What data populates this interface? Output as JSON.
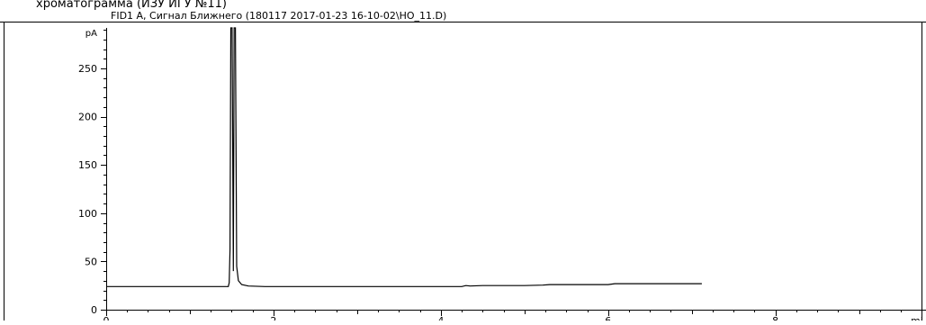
{
  "caption_fragment": "хроматограмма (ИЗУ ИГУ №11)",
  "chart_data": {
    "type": "line",
    "title": "FID1 A, Сигнал Ближнего (180117 2017-01-23 16-10-02\\HO_11.D)",
    "ylabel": "pA",
    "xlabel": "mi",
    "xlim": [
      0,
      9.8
    ],
    "ylim": [
      0,
      292
    ],
    "yticks": [
      0,
      50,
      100,
      150,
      200,
      250
    ],
    "xticks": [
      0,
      2,
      4,
      6,
      8
    ],
    "grid": false,
    "series": [
      {
        "points": [
          [
            0.0,
            24
          ],
          [
            1.46,
            24
          ],
          [
            1.47,
            28
          ],
          [
            1.48,
            62
          ],
          [
            1.49,
            292
          ],
          [
            1.505,
            292
          ],
          [
            1.52,
            40
          ],
          [
            1.53,
            292
          ],
          [
            1.545,
            292
          ],
          [
            1.56,
            45
          ],
          [
            1.58,
            30
          ],
          [
            1.62,
            26
          ],
          [
            1.7,
            24.5
          ],
          [
            1.9,
            24
          ],
          [
            2.5,
            24
          ],
          [
            3.5,
            24
          ],
          [
            4.25,
            24
          ],
          [
            4.3,
            25
          ],
          [
            4.35,
            24.5
          ],
          [
            4.5,
            25
          ],
          [
            5.0,
            25
          ],
          [
            5.22,
            25.5
          ],
          [
            5.3,
            26
          ],
          [
            6.0,
            26
          ],
          [
            6.08,
            27
          ],
          [
            6.5,
            27
          ],
          [
            7.12,
            27
          ]
        ]
      }
    ],
    "line_color": "#000000"
  }
}
